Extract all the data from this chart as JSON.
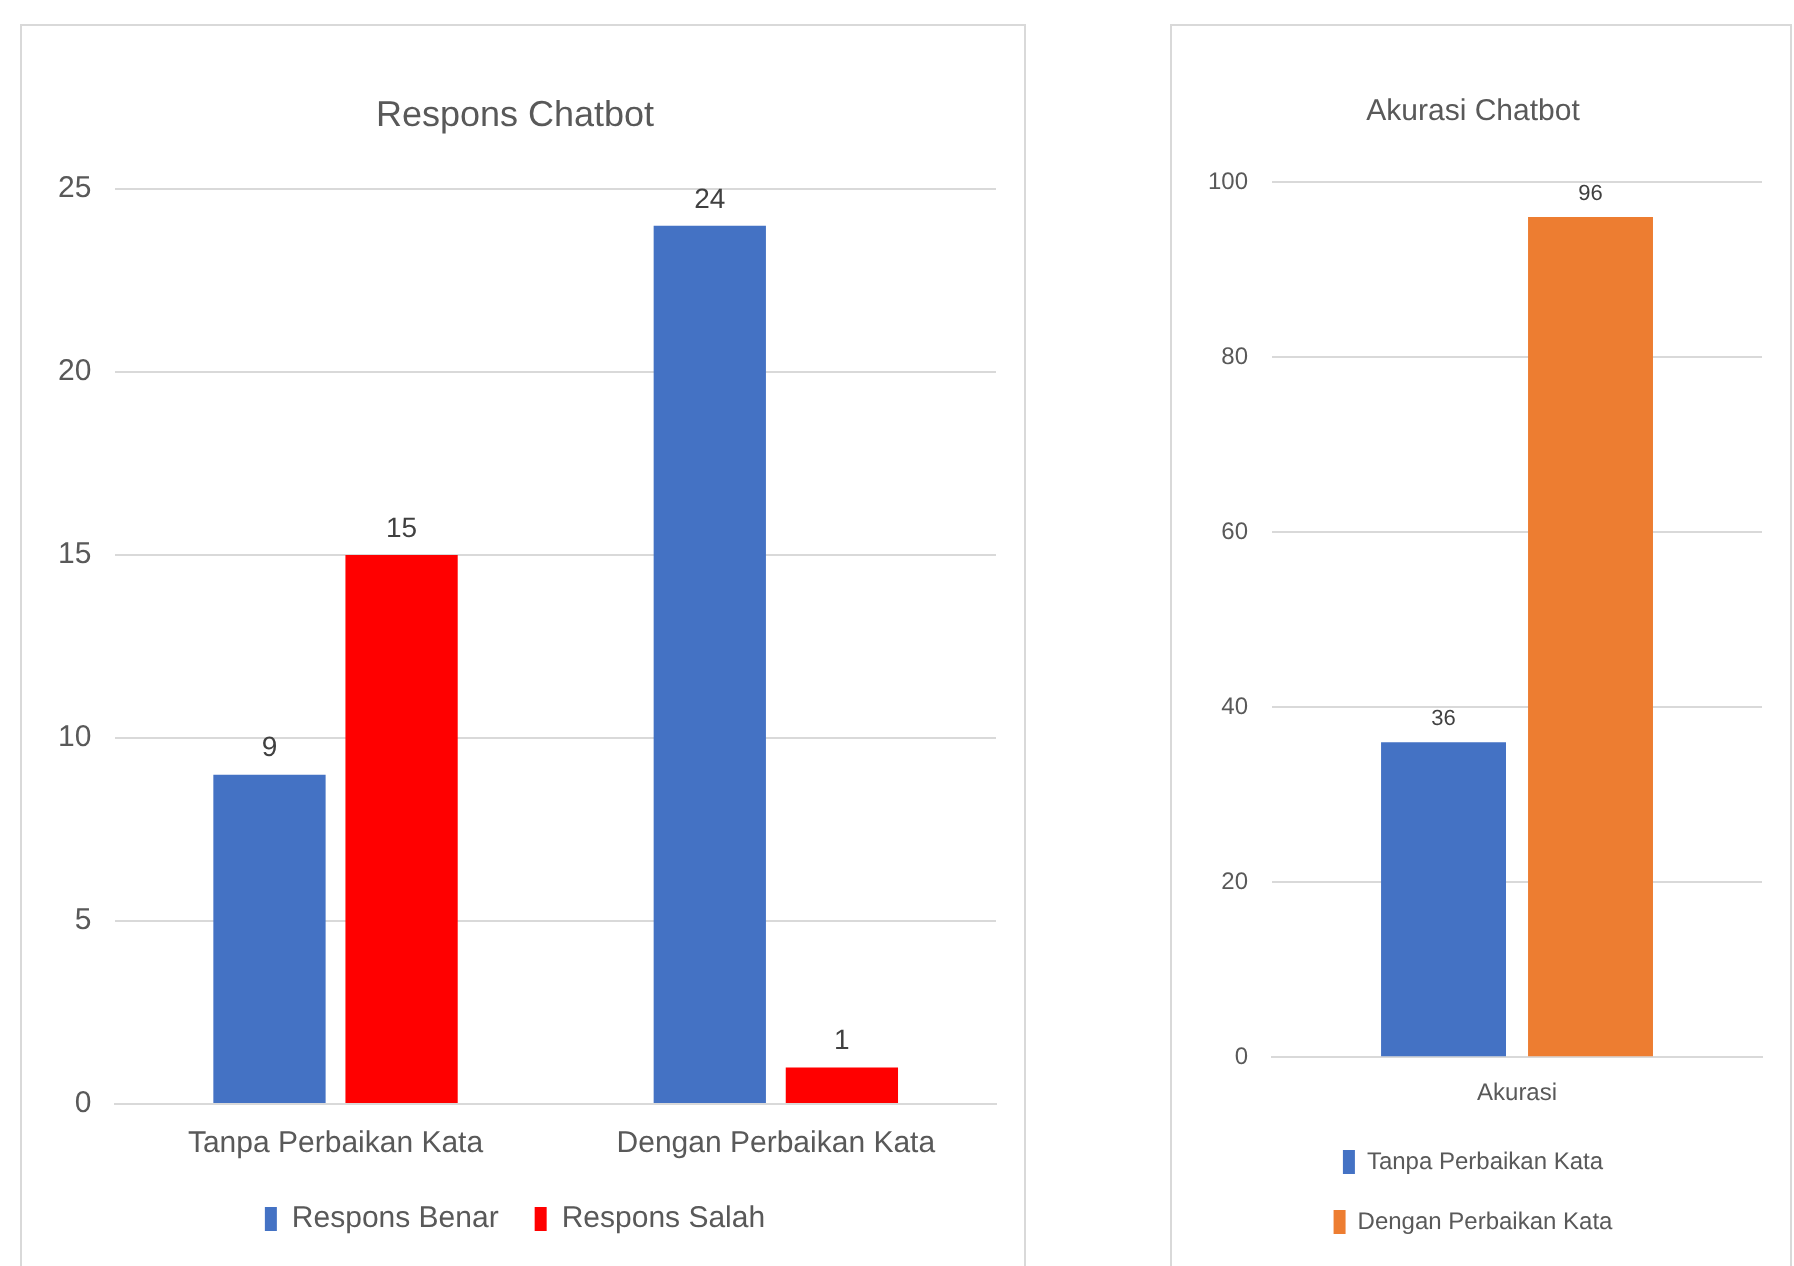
{
  "chart_data": [
    {
      "type": "bar",
      "title": "Respons Chatbot",
      "categories": [
        "Tanpa Perbaikan Kata",
        "Dengan Perbaikan Kata"
      ],
      "series": [
        {
          "name": "Respons Benar",
          "color": "#4472c4",
          "values": [
            9,
            24
          ]
        },
        {
          "name": "Respons Salah",
          "color": "#ff0000",
          "values": [
            15,
            1
          ]
        }
      ],
      "ylim": [
        0,
        25
      ],
      "yticks": [
        0,
        5,
        10,
        15,
        20,
        25
      ],
      "grid": "y",
      "legend": "bottom",
      "data_labels": true
    },
    {
      "type": "bar",
      "title": "Akurasi Chatbot",
      "categories": [
        "Akurasi"
      ],
      "series": [
        {
          "name": "Tanpa Perbaikan Kata",
          "color": "#4472c4",
          "values": [
            36
          ]
        },
        {
          "name": "Dengan Perbaikan Kata",
          "color": "#ed7d31",
          "values": [
            96
          ]
        }
      ],
      "ylim": [
        0,
        100
      ],
      "yticks": [
        0,
        20,
        40,
        60,
        80,
        100
      ],
      "grid": "y",
      "legend": "bottom",
      "data_labels": true
    }
  ]
}
